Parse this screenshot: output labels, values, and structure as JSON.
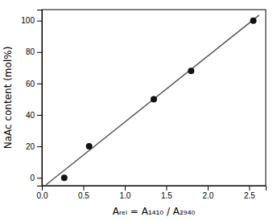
{
  "chart_data": {
    "type": "scatter",
    "xlabel": "Aᵣₑₗ = A₁₄₁₀ / A₂₉₄₀",
    "ylabel": "NaAc content (mol%)",
    "series": [
      {
        "type": "scatter",
        "color": "#111111",
        "x": [
          0.27,
          0.57,
          1.35,
          1.8,
          2.55
        ],
        "values": [
          0,
          20,
          50,
          68,
          100
        ]
      },
      {
        "type": "line",
        "color": "#555555",
        "x": [
          0.05,
          2.62
        ],
        "values": [
          -4.5,
          103.5
        ]
      }
    ],
    "xlim": [
      0.0,
      2.7
    ],
    "ylim": [
      -5,
      107
    ],
    "xticks": [
      {
        "value": 0.0,
        "label": "0.0"
      },
      0.5,
      {
        "value": 1.0,
        "label": "1.0"
      },
      1.5,
      {
        "value": 2.0,
        "label": "2.0"
      },
      2.5
    ],
    "yticks": [
      0,
      20,
      40,
      60,
      80,
      100
    ],
    "grid": false
  }
}
